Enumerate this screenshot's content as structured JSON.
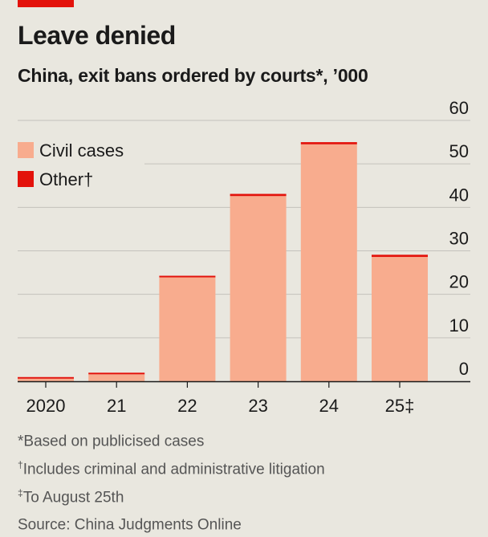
{
  "header": {
    "title": "Leave denied",
    "subtitle": "China, exit bans ordered by courts*, ’000"
  },
  "colors": {
    "civil": "#f8ac8e",
    "other": "#e3120b",
    "tag": "#e3120b",
    "grid": "#c4c2bc",
    "axis": "#1a1a1a",
    "background": "#e9e7df"
  },
  "chart_data": {
    "type": "bar",
    "stacked": true,
    "categories": [
      "2020",
      "21",
      "22",
      "23",
      "24",
      "25‡"
    ],
    "series": [
      {
        "name": "Civil cases",
        "values": [
          0.6,
          1.6,
          23.9,
          42.6,
          54.5,
          28.6
        ]
      },
      {
        "name": "Other†",
        "values": [
          0.1,
          0.1,
          0.2,
          0.5,
          0.5,
          0.5
        ]
      }
    ],
    "ylim": [
      0,
      60
    ],
    "yticks": [
      0,
      10,
      20,
      30,
      40,
      50,
      60
    ],
    "y_axis_side": "right",
    "grid": true,
    "legend_position": "top-left"
  },
  "footnotes": [
    {
      "mark": "",
      "text": "*Based on publicised cases"
    },
    {
      "mark": "†",
      "text": "Includes criminal and administrative litigation"
    },
    {
      "mark": "‡",
      "text": "To August 25th"
    },
    {
      "mark": "",
      "text": "Source: China Judgments Online"
    }
  ]
}
